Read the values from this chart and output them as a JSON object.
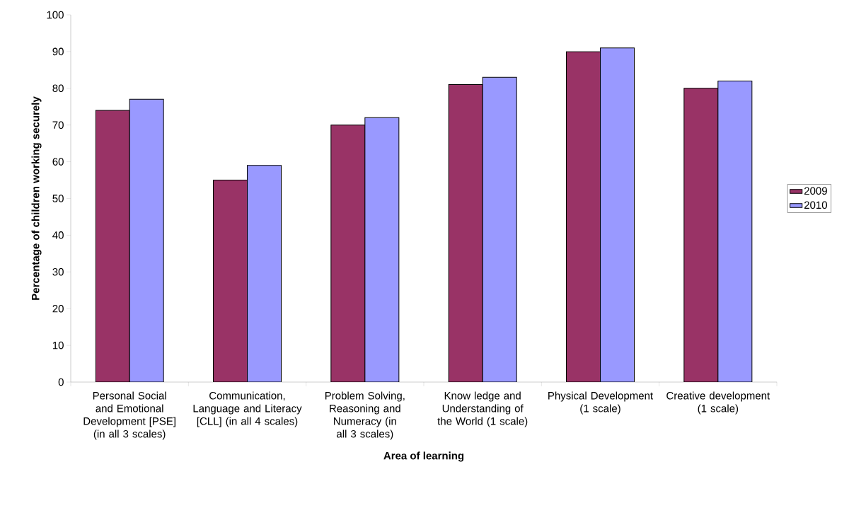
{
  "chart_data": {
    "type": "bar",
    "xlabel": "Area of learning",
    "ylabel": "Percentage of children working securely",
    "categories": [
      "Personal Social and Emotional Development [PSE] (in all 3 scales)",
      "Communication, Language and Literacy [CLL] (in all 4 scales)",
      "Problem Solving, Reasoning and Numeracy (in all 3 scales)",
      "Know ledge and Understanding of the World (1 scale)",
      "Physical Development (1 scale)",
      "Creative development (1 scale)"
    ],
    "series": [
      {
        "name": "2009",
        "color": "#993366",
        "values": [
          74,
          55,
          70,
          81,
          90,
          80
        ]
      },
      {
        "name": "2010",
        "color": "#9999ff",
        "values": [
          77,
          59,
          72,
          83,
          91,
          82
        ]
      }
    ],
    "ylim": [
      0,
      100
    ],
    "yticks": [
      0,
      10,
      20,
      30,
      40,
      50,
      60,
      70,
      80,
      90,
      100
    ],
    "grid": false,
    "legend": "right"
  }
}
